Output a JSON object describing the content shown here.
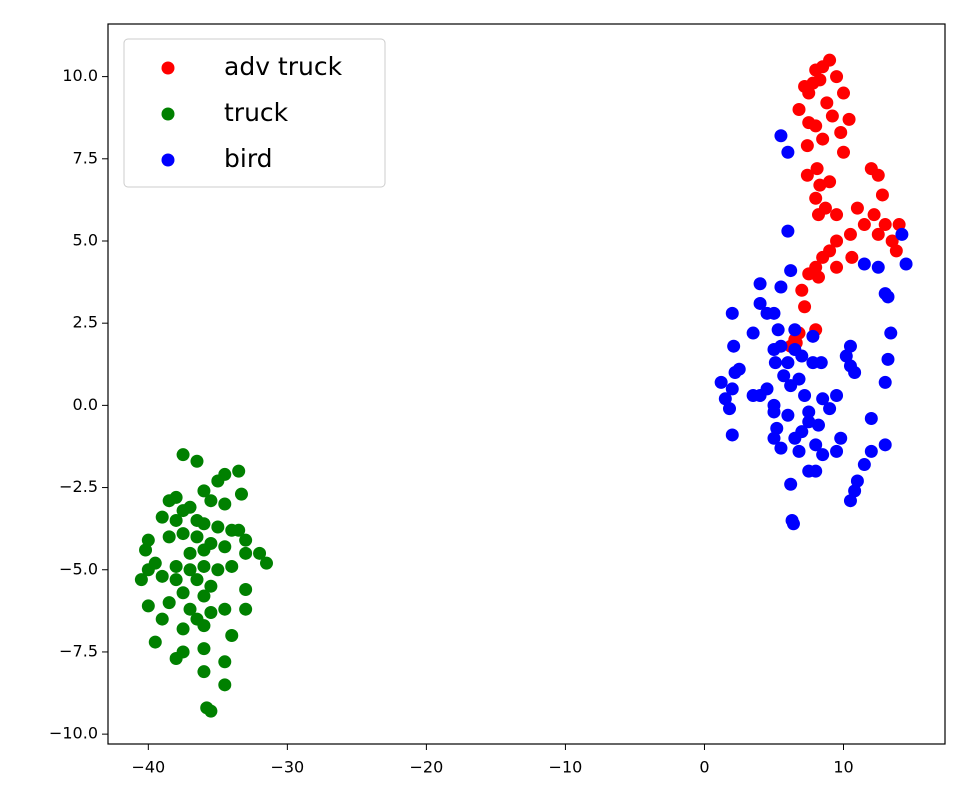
{
  "chart_data": {
    "type": "scatter",
    "xlim": [
      -42.9,
      17.3
    ],
    "ylim": [
      -10.3,
      11.6
    ],
    "xticks": [
      {
        "value": -40,
        "label": "−40"
      },
      {
        "value": -30,
        "label": "−30"
      },
      {
        "value": -20,
        "label": "−20"
      },
      {
        "value": -10,
        "label": "−10"
      },
      0,
      10
    ],
    "yticks": [
      {
        "value": -10,
        "label": "−10.0"
      },
      {
        "value": -7.5,
        "label": "−7.5"
      },
      {
        "value": -5,
        "label": "−5.0"
      },
      {
        "value": -2.5,
        "label": "−2.5"
      },
      {
        "value": 0,
        "label": "0.0"
      },
      {
        "value": 2.5,
        "label": "2.5"
      },
      {
        "value": 5,
        "label": "5.0"
      },
      {
        "value": 7.5,
        "label": "7.5"
      },
      {
        "value": 10,
        "label": "10.0"
      }
    ],
    "legend": "upper left",
    "series": [
      {
        "name": "adv truck",
        "color": "#ff0000",
        "x": [
          9,
          8.5,
          8,
          8.3,
          7.8,
          7.5,
          9.5,
          10,
          7.2,
          6.8,
          8.8,
          9.2,
          8,
          7.5,
          9.8,
          10.4,
          10,
          8.5,
          7.4,
          8.1,
          7.4,
          8.3,
          9,
          8,
          8.7,
          9.5,
          8.2,
          11,
          12,
          12.5,
          12.8,
          11.5,
          12.2,
          13,
          13.5,
          14,
          13.8,
          12.5,
          10.5,
          9.5,
          9,
          10.6,
          8.5,
          8,
          7.5,
          8.2,
          7,
          7.2,
          8,
          6.8,
          6.5,
          6.2,
          6.6,
          9.5
        ],
        "values": [
          10.5,
          10.3,
          10.2,
          9.9,
          9.8,
          9.5,
          10,
          9.5,
          9.7,
          9,
          9.2,
          8.8,
          8.5,
          8.6,
          8.3,
          8.7,
          7.7,
          8.1,
          7.9,
          7.2,
          7,
          6.7,
          6.8,
          6.3,
          6,
          5.8,
          5.8,
          6,
          7.2,
          7,
          6.4,
          5.5,
          5.8,
          5.5,
          5,
          5.5,
          4.7,
          5.2,
          5.2,
          5,
          4.7,
          4.5,
          4.5,
          4.2,
          4,
          3.9,
          3.5,
          3,
          2.3,
          2.2,
          2,
          1.8,
          1.9,
          4.2
        ]
      },
      {
        "name": "truck",
        "color": "#008000",
        "x": [
          -37.5,
          -36.5,
          -34.5,
          -33.5,
          -35,
          -33.3,
          -36,
          -35.5,
          -34.5,
          -38.5,
          -38,
          -37.5,
          -37,
          -36.5,
          -38,
          -39,
          -36,
          -35,
          -34,
          -33.5,
          -37.5,
          -36.5,
          -38.5,
          -40,
          -40.2,
          -35.5,
          -33,
          -34.5,
          -37,
          -36,
          -32,
          -31.5,
          -33,
          -39.5,
          -38,
          -37,
          -36,
          -35,
          -34,
          -40,
          -40.5,
          -39,
          -38,
          -36.5,
          -35.5,
          -37.5,
          -36,
          -33,
          -38.5,
          -40,
          -37,
          -35.5,
          -34.5,
          -33,
          -36.5,
          -39,
          -37.5,
          -36,
          -34,
          -39.5,
          -37.5,
          -38,
          -36,
          -34.5,
          -36,
          -34.5,
          -35.8,
          -35.5
        ],
        "values": [
          -1.5,
          -1.7,
          -2.1,
          -2,
          -2.3,
          -2.7,
          -2.6,
          -2.9,
          -3,
          -2.9,
          -2.8,
          -3.2,
          -3.1,
          -3.5,
          -3.5,
          -3.4,
          -3.6,
          -3.7,
          -3.8,
          -3.8,
          -3.9,
          -4,
          -4,
          -4.1,
          -4.4,
          -4.2,
          -4.1,
          -4.3,
          -4.5,
          -4.4,
          -4.5,
          -4.8,
          -4.5,
          -4.8,
          -4.9,
          -5,
          -4.9,
          -5,
          -4.9,
          -5,
          -5.3,
          -5.2,
          -5.3,
          -5.3,
          -5.5,
          -5.7,
          -5.8,
          -5.6,
          -6,
          -6.1,
          -6.2,
          -6.3,
          -6.2,
          -6.2,
          -6.5,
          -6.5,
          -6.8,
          -6.7,
          -7,
          -7.2,
          -7.5,
          -7.7,
          -7.4,
          -7.8,
          -8.1,
          -8.5,
          -9.2,
          -9.3
        ]
      },
      {
        "name": "bird",
        "color": "#0000ff",
        "x": [
          5.5,
          6,
          6,
          14.2,
          14.5,
          11.5,
          12.5,
          13,
          13.2,
          13.4,
          13.2,
          13,
          12,
          13,
          12,
          11.5,
          11,
          10.8,
          10.5,
          10.5,
          10.2,
          10.5,
          10.8,
          9.5,
          9,
          8.5,
          9.8,
          8.5,
          8,
          8,
          7.5,
          7.5,
          7,
          6.5,
          6.2,
          6.3,
          6.4,
          5.5,
          5,
          5,
          4.5,
          4,
          3.5,
          2,
          1.5,
          1.8,
          1.2,
          2,
          2.2,
          2.5,
          2.1,
          2,
          4,
          5.5,
          6.2,
          4,
          4.5,
          5,
          5.3,
          6.5,
          7.8,
          6.5,
          7,
          6,
          5,
          5.5,
          7.8,
          8.4,
          5.7,
          5.1,
          6.2,
          6.8,
          7.2,
          3.5,
          6.8,
          5,
          5.2,
          6,
          7.5,
          8.2,
          9.5
        ],
        "values": [
          8.2,
          7.7,
          5.3,
          5.2,
          4.3,
          4.3,
          4.2,
          3.4,
          3.3,
          2.2,
          1.4,
          0.7,
          -0.4,
          -1.2,
          -1.4,
          -1.8,
          -2.3,
          -2.6,
          -2.9,
          1.8,
          1.5,
          1.2,
          1,
          0.3,
          -0.1,
          0.2,
          -1,
          -1.5,
          -2,
          -1.2,
          -2,
          -0.5,
          -0.8,
          -1,
          -2.4,
          -3.5,
          -3.6,
          -1.3,
          -1,
          -0.2,
          0.5,
          0.3,
          0.3,
          0.5,
          0.2,
          -0.1,
          0.7,
          -0.9,
          1,
          1.1,
          1.8,
          2.8,
          3.7,
          3.6,
          4.1,
          3.1,
          2.8,
          2.8,
          2.3,
          2.3,
          2.1,
          1.7,
          1.5,
          1.3,
          1.7,
          1.8,
          1.3,
          1.3,
          0.9,
          1.3,
          0.6,
          0.8,
          0.3,
          2.2,
          -1.4,
          0,
          -0.7,
          -0.3,
          -0.2,
          -0.6,
          -1.4
        ]
      }
    ]
  }
}
